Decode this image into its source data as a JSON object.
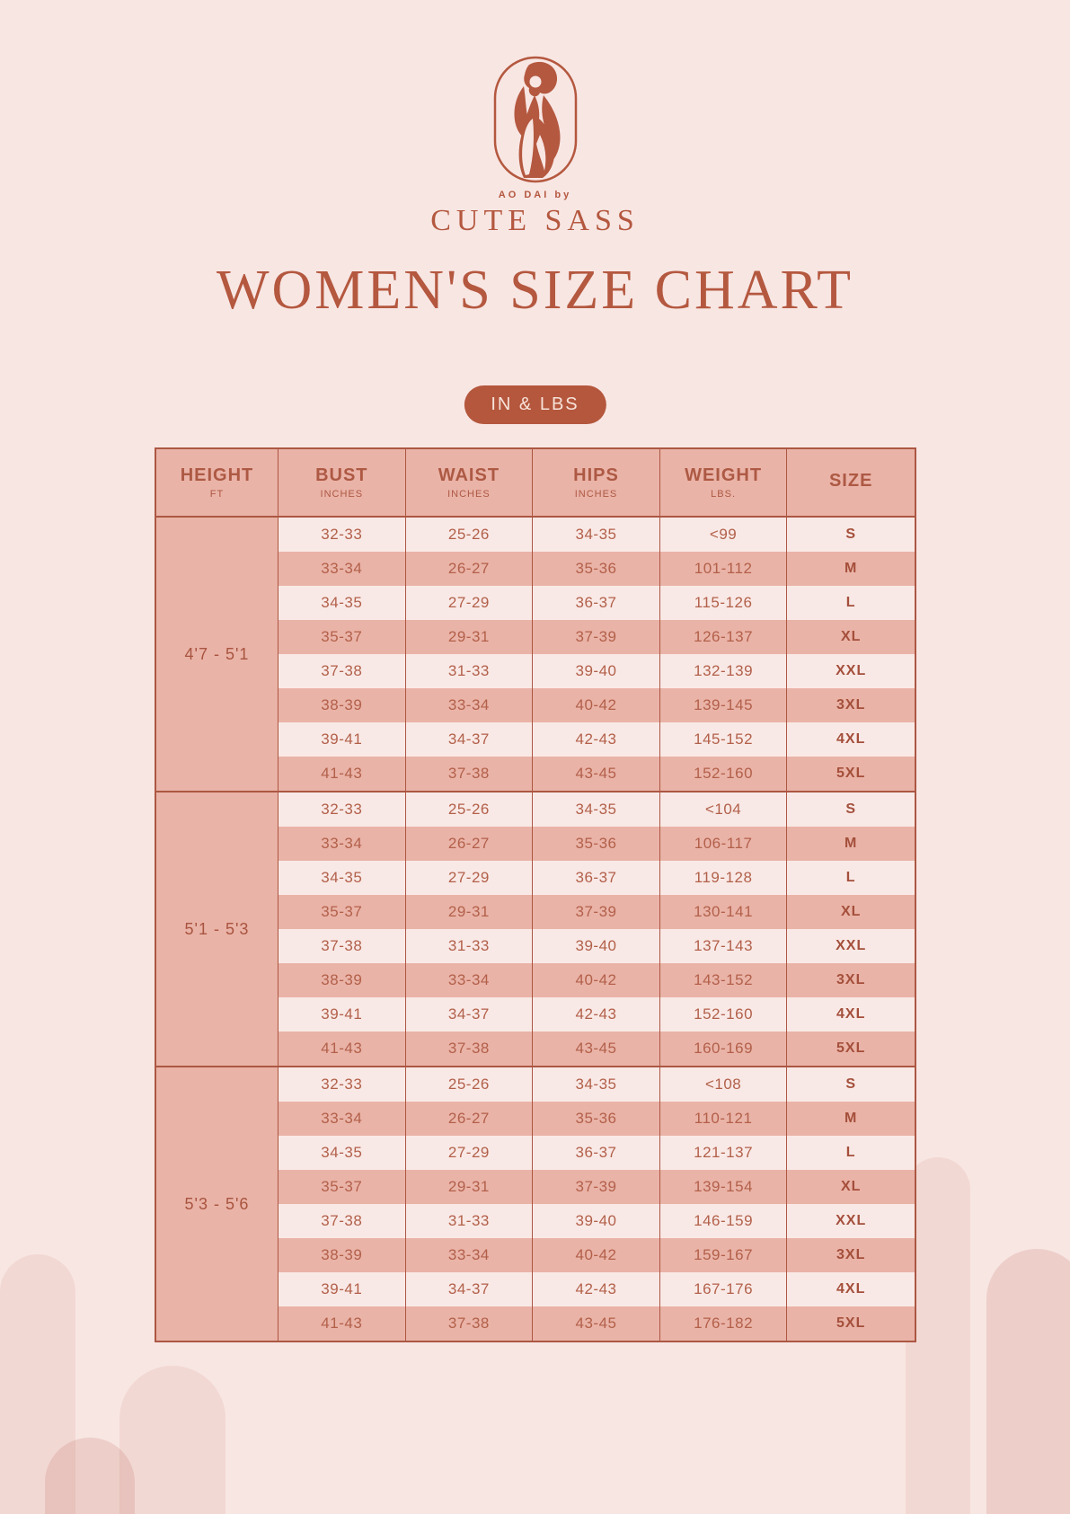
{
  "page": {
    "background_color": "#f8e6e3",
    "accent_color": "#b4583f",
    "salmon_color": "#eab3a7",
    "light_row_color": "#f9e9e6",
    "border_color": "#ac5743"
  },
  "brand": {
    "tagline": "AO DAI by",
    "name": "CUTE SASS"
  },
  "title": "WOMEN'S SIZE CHART",
  "units_badge": "IN & LBS",
  "table": {
    "columns": [
      {
        "label": "HEIGHT",
        "sub": "FT"
      },
      {
        "label": "BUST",
        "sub": "INCHES"
      },
      {
        "label": "WAIST",
        "sub": "INCHES"
      },
      {
        "label": "HIPS",
        "sub": "INCHES"
      },
      {
        "label": "WEIGHT",
        "sub": "LBS."
      },
      {
        "label": "SIZE",
        "sub": ""
      }
    ],
    "groups": [
      {
        "height": "4'7 - 5'1",
        "rows": [
          [
            "32-33",
            "25-26",
            "34-35",
            "<99",
            "S"
          ],
          [
            "33-34",
            "26-27",
            "35-36",
            "101-112",
            "M"
          ],
          [
            "34-35",
            "27-29",
            "36-37",
            "115-126",
            "L"
          ],
          [
            "35-37",
            "29-31",
            "37-39",
            "126-137",
            "XL"
          ],
          [
            "37-38",
            "31-33",
            "39-40",
            "132-139",
            "XXL"
          ],
          [
            "38-39",
            "33-34",
            "40-42",
            "139-145",
            "3XL"
          ],
          [
            "39-41",
            "34-37",
            "42-43",
            "145-152",
            "4XL"
          ],
          [
            "41-43",
            "37-38",
            "43-45",
            "152-160",
            "5XL"
          ]
        ]
      },
      {
        "height": "5'1 - 5'3",
        "rows": [
          [
            "32-33",
            "25-26",
            "34-35",
            "<104",
            "S"
          ],
          [
            "33-34",
            "26-27",
            "35-36",
            "106-117",
            "M"
          ],
          [
            "34-35",
            "27-29",
            "36-37",
            "119-128",
            "L"
          ],
          [
            "35-37",
            "29-31",
            "37-39",
            "130-141",
            "XL"
          ],
          [
            "37-38",
            "31-33",
            "39-40",
            "137-143",
            "XXL"
          ],
          [
            "38-39",
            "33-34",
            "40-42",
            "143-152",
            "3XL"
          ],
          [
            "39-41",
            "34-37",
            "42-43",
            "152-160",
            "4XL"
          ],
          [
            "41-43",
            "37-38",
            "43-45",
            "160-169",
            "5XL"
          ]
        ]
      },
      {
        "height": "5'3 - 5'6",
        "rows": [
          [
            "32-33",
            "25-26",
            "34-35",
            "<108",
            "S"
          ],
          [
            "33-34",
            "26-27",
            "35-36",
            "110-121",
            "M"
          ],
          [
            "34-35",
            "27-29",
            "36-37",
            "121-137",
            "L"
          ],
          [
            "35-37",
            "29-31",
            "37-39",
            "139-154",
            "XL"
          ],
          [
            "37-38",
            "31-33",
            "39-40",
            "146-159",
            "XXL"
          ],
          [
            "38-39",
            "33-34",
            "40-42",
            "159-167",
            "3XL"
          ],
          [
            "39-41",
            "34-37",
            "42-43",
            "167-176",
            "4XL"
          ],
          [
            "41-43",
            "37-38",
            "43-45",
            "176-182",
            "5XL"
          ]
        ]
      }
    ]
  }
}
